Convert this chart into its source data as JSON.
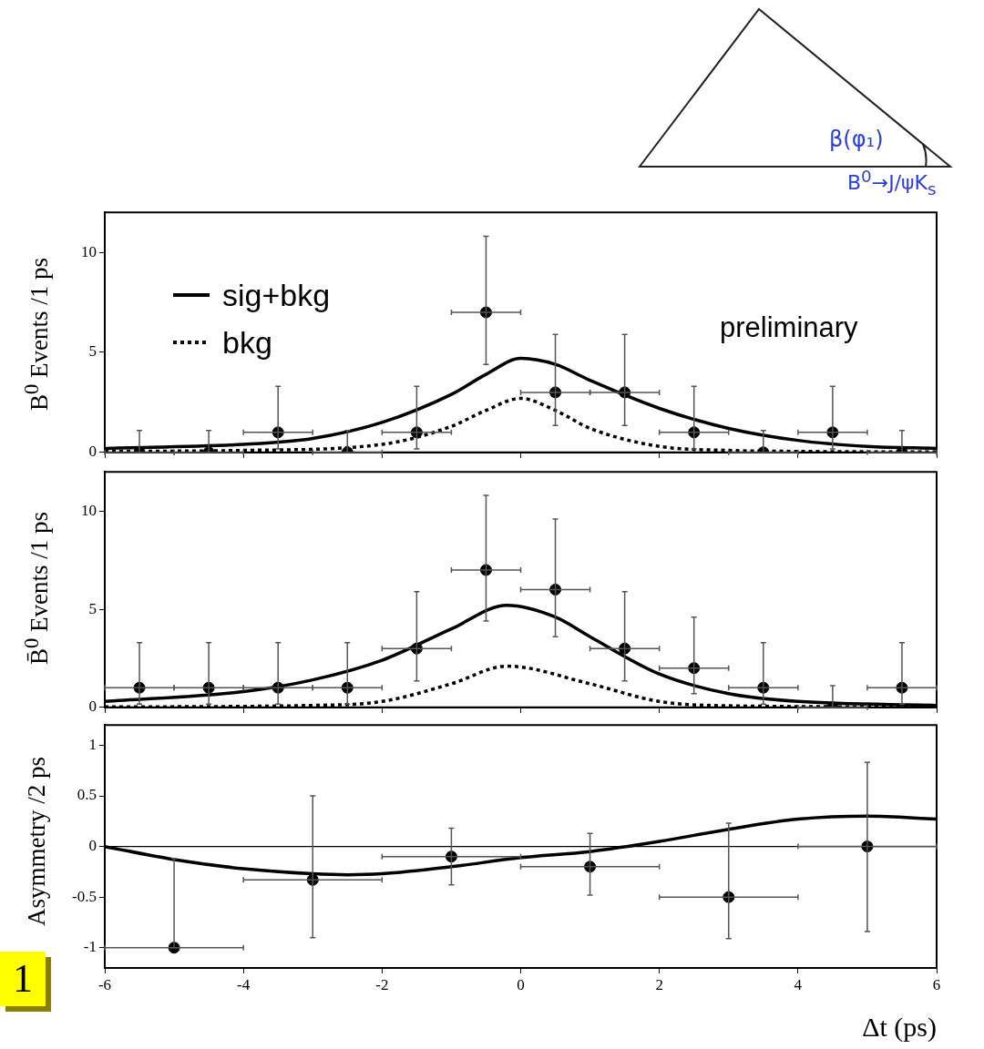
{
  "chart_data": [
    {
      "type": "scatter",
      "ylabel": "B$^{0}$ Events /1 ps",
      "xlim": [
        -6,
        6
      ],
      "xticks": [
        -6,
        -4,
        -2,
        0,
        2,
        4,
        6
      ],
      "ylim": [
        0,
        12
      ],
      "yticks": [
        0,
        5,
        10
      ],
      "tick_labels": "y",
      "grid": false,
      "legend": "top left",
      "annotations": [
        "preliminary",
        "β(φ₁)",
        "B$^{0}$→J/ψK$_{s}$"
      ],
      "series": [
        {
          "color": "#000000",
          "marker": "circle",
          "x": [
            -5.5,
            -4.5,
            -3.5,
            -2.5,
            -1.5,
            -0.5,
            0.5,
            1.5,
            2.5,
            3.5,
            4.5,
            5.5
          ],
          "values": [
            0,
            0,
            1,
            0,
            1,
            7,
            3,
            3,
            1,
            0,
            1,
            0
          ],
          "errors": [
            [
              0,
              1.1
            ],
            [
              0,
              1.1
            ],
            [
              0.17,
              3.3
            ],
            [
              0,
              1.1
            ],
            [
              0.17,
              3.3
            ],
            [
              4.4,
              10.8
            ],
            [
              1.35,
              5.9
            ],
            [
              1.35,
              5.9
            ],
            [
              0.17,
              3.3
            ],
            [
              0,
              1.1
            ],
            [
              0.17,
              3.3
            ],
            [
              0,
              1.1
            ]
          ],
          "xerrors": [
            0.5,
            0.5,
            0.5,
            0.5,
            0.5,
            0.5,
            0.5,
            0.5,
            0.5,
            0.5,
            0.5,
            0.5
          ]
        },
        {
          "type": "line",
          "name": "sig+bkg",
          "color": "#000000",
          "line_style": "solid",
          "marker": "none",
          "x": [
            -6,
            -4,
            -3,
            -2,
            -1,
            -0.5,
            0,
            0.5,
            1,
            2,
            3,
            4,
            5,
            6
          ],
          "values": [
            0.2,
            0.4,
            0.7,
            1.5,
            2.9,
            3.9,
            4.7,
            4.4,
            3.6,
            2.2,
            1.2,
            0.6,
            0.3,
            0.2
          ]
        },
        {
          "type": "line",
          "name": "bkg",
          "color": "#000000",
          "line_style": "dotted",
          "marker": "none",
          "x": [
            -6,
            -4,
            -2,
            -1,
            -0.5,
            0,
            0.5,
            1,
            2,
            3,
            4,
            6
          ],
          "values": [
            0.05,
            0.1,
            0.4,
            1.3,
            2.1,
            2.7,
            2.1,
            1.2,
            0.3,
            0.1,
            0.05,
            0.02
          ]
        }
      ]
    },
    {
      "type": "scatter",
      "ylabel": "B̄$^{0}$ Events /1 ps",
      "xlim": [
        -6,
        6
      ],
      "xticks": [
        -6,
        -4,
        -2,
        0,
        2,
        4,
        6
      ],
      "ylim": [
        0,
        12
      ],
      "yticks": [
        0,
        5,
        10
      ],
      "tick_labels": "y",
      "grid": false,
      "series": [
        {
          "color": "#000000",
          "marker": "circle",
          "x": [
            -5.5,
            -4.5,
            -3.5,
            -2.5,
            -1.5,
            -0.5,
            0.5,
            1.5,
            2.5,
            3.5,
            4.5,
            5.5
          ],
          "values": [
            1,
            1,
            1,
            1,
            3,
            7,
            6,
            3,
            2,
            1,
            0,
            1
          ],
          "errors": [
            [
              0.17,
              3.3
            ],
            [
              0.17,
              3.3
            ],
            [
              0.17,
              3.3
            ],
            [
              0.17,
              3.3
            ],
            [
              1.35,
              5.9
            ],
            [
              4.4,
              10.8
            ],
            [
              3.6,
              9.6
            ],
            [
              1.35,
              5.9
            ],
            [
              0.7,
              4.6
            ],
            [
              0.17,
              3.3
            ],
            [
              0,
              1.1
            ],
            [
              0.17,
              3.3
            ]
          ],
          "xerrors": [
            0.5,
            0.5,
            0.5,
            0.5,
            0.5,
            0.5,
            0.5,
            0.5,
            0.5,
            0.5,
            0.5,
            0.5
          ]
        },
        {
          "type": "line",
          "color": "#000000",
          "line_style": "solid",
          "marker": "none",
          "x": [
            -6,
            -4,
            -3,
            -2,
            -1,
            -0.2,
            0.5,
            1,
            2,
            3,
            4,
            6
          ],
          "values": [
            0.3,
            0.8,
            1.4,
            2.4,
            4.0,
            5.2,
            4.6,
            3.6,
            1.7,
            0.7,
            0.3,
            0.1
          ]
        },
        {
          "type": "line",
          "color": "#000000",
          "line_style": "dotted",
          "marker": "none",
          "x": [
            -6,
            -3,
            -2,
            -1,
            -0.2,
            1,
            2,
            3,
            6
          ],
          "values": [
            0.02,
            0.1,
            0.3,
            1.2,
            2.1,
            1.2,
            0.3,
            0.08,
            0.02
          ]
        }
      ]
    },
    {
      "type": "scatter",
      "ylabel": "Asymmetry /2 ps",
      "xlabel": "Δt (ps)",
      "xlim": [
        -6,
        6
      ],
      "xticks": [
        -6,
        -4,
        -2,
        0,
        2,
        4,
        6
      ],
      "ylim": [
        -1.2,
        1.2
      ],
      "yticks": [
        -1,
        -0.5,
        0,
        0.5,
        1
      ],
      "grid": false,
      "annotations": [
        "1"
      ],
      "ref_lines": [
        {
          "axis": "y",
          "value": 0,
          "color": "#000000"
        }
      ],
      "series": [
        {
          "color": "#000000",
          "marker": "circle",
          "x": [
            -5,
            -3,
            -1,
            1,
            3,
            5
          ],
          "values": [
            -1,
            -0.33,
            -0.1,
            -0.2,
            -0.5,
            0
          ],
          "errors": [
            [
              -1,
              -0.12
            ],
            [
              -0.9,
              0.5
            ],
            [
              -0.38,
              0.18
            ],
            [
              -0.48,
              0.13
            ],
            [
              -0.91,
              0.23
            ],
            [
              -0.84,
              0.83
            ]
          ],
          "xerrors": [
            1,
            1,
            1,
            1,
            1,
            1
          ]
        },
        {
          "type": "line",
          "color": "#000000",
          "line_style": "solid",
          "marker": "none",
          "x": [
            -6,
            -5,
            -4,
            -3,
            -2.5,
            -2,
            -1,
            0,
            1,
            2,
            3,
            4,
            5,
            6
          ],
          "values": [
            0,
            -0.13,
            -0.22,
            -0.27,
            -0.28,
            -0.27,
            -0.2,
            -0.11,
            -0.05,
            0.05,
            0.17,
            0.27,
            0.3,
            0.27
          ]
        }
      ]
    }
  ]
}
